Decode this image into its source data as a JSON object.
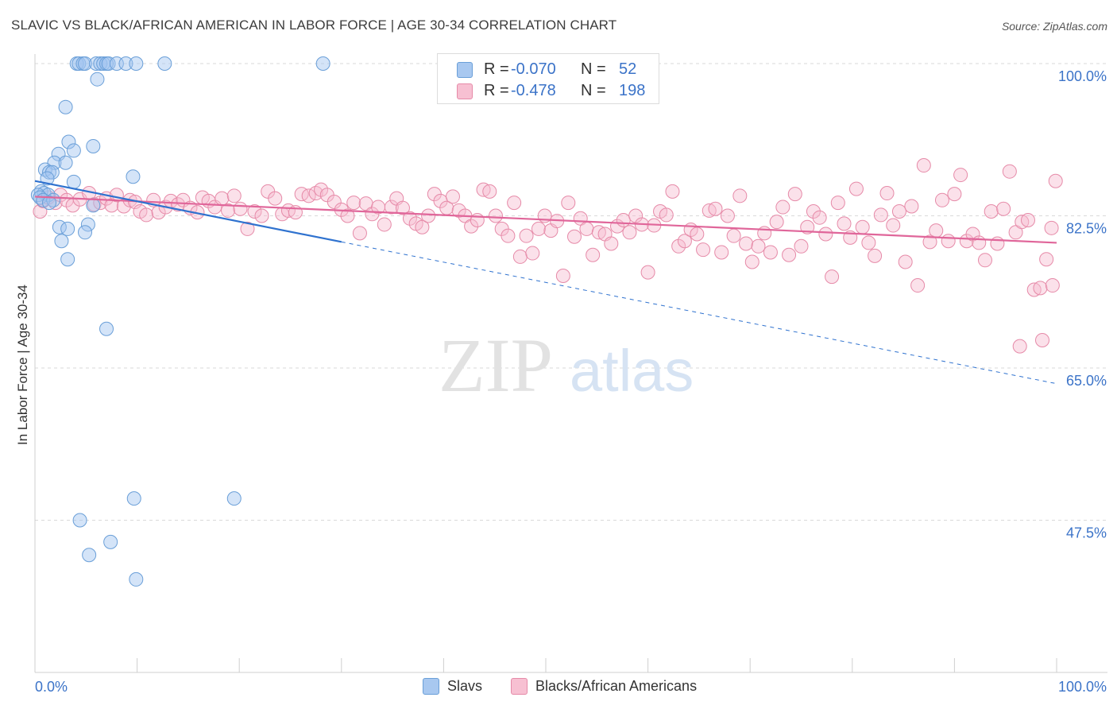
{
  "title": "SLAVIC VS BLACK/AFRICAN AMERICAN IN LABOR FORCE | AGE 30-34 CORRELATION CHART",
  "source": "Source: ZipAtlas.com",
  "watermark": {
    "zip": "ZIP",
    "atlas": "atlas"
  },
  "legend_top": [
    {
      "r_label": "R =",
      "r_value": "-0.070",
      "n_label": "N =",
      "n_value": "52",
      "color": "#a8c8f0",
      "stroke": "#6a9fd8"
    },
    {
      "r_label": "R =",
      "r_value": "-0.478",
      "n_label": "N =",
      "n_value": "198",
      "color": "#f7c0d2",
      "stroke": "#e68aa8"
    }
  ],
  "legend_bottom": [
    {
      "label": "Slavs",
      "color": "#a8c8f0",
      "stroke": "#6a9fd8"
    },
    {
      "label": "Blacks/African Americans",
      "color": "#f7c0d2",
      "stroke": "#e68aa8"
    }
  ],
  "colors": {
    "blue_fill": "rgba(160,196,240,0.45)",
    "blue_stroke": "#6a9fd8",
    "blue_line": "#2f72cf",
    "pink_fill": "rgba(247,188,208,0.45)",
    "pink_stroke": "#e68aa8",
    "pink_line": "#e0669a",
    "tick_label": "#3b73c8",
    "grid": "#d9d9d9"
  },
  "chart_data": {
    "type": "scatter",
    "title": "SLAVIC VS BLACK/AFRICAN AMERICAN IN LABOR FORCE | AGE 30-34 CORRELATION CHART",
    "xlabel": "",
    "ylabel": "In Labor Force | Age 30-34",
    "xlim": [
      0,
      100
    ],
    "ylim": [
      33,
      101.5
    ],
    "x_tick_labels": [
      "0.0%",
      "100.0%"
    ],
    "y_ticks": [
      {
        "value": 100.0,
        "label": "100.0%"
      },
      {
        "value": 82.5,
        "label": "82.5%"
      },
      {
        "value": 65.0,
        "label": "65.0%"
      },
      {
        "value": 47.5,
        "label": "47.5%"
      }
    ],
    "grid": true,
    "legend_position": "top-center",
    "series": [
      {
        "name": "Slavs",
        "R": -0.07,
        "N": 52,
        "points": [
          [
            4.1,
            100.0
          ],
          [
            4.3,
            100.0
          ],
          [
            4.7,
            100.0
          ],
          [
            4.9,
            100.0
          ],
          [
            6.0,
            100.0
          ],
          [
            6.4,
            100.0
          ],
          [
            6.7,
            100.0
          ],
          [
            7.0,
            100.0
          ],
          [
            7.2,
            100.0
          ],
          [
            8.0,
            100.0
          ],
          [
            8.9,
            100.0
          ],
          [
            9.9,
            100.0
          ],
          [
            12.7,
            100.0
          ],
          [
            28.2,
            100.0
          ],
          [
            6.1,
            98.2
          ],
          [
            3.0,
            95.0
          ],
          [
            3.3,
            91.0
          ],
          [
            5.7,
            90.5
          ],
          [
            3.8,
            90.0
          ],
          [
            2.3,
            89.6
          ],
          [
            1.9,
            88.6
          ],
          [
            3.0,
            88.6
          ],
          [
            1.0,
            87.8
          ],
          [
            1.4,
            87.5
          ],
          [
            1.7,
            87.5
          ],
          [
            9.6,
            87.0
          ],
          [
            1.2,
            86.8
          ],
          [
            3.8,
            86.4
          ],
          [
            0.6,
            85.3
          ],
          [
            0.9,
            85.1
          ],
          [
            0.3,
            84.9
          ],
          [
            1.3,
            84.9
          ],
          [
            0.5,
            84.6
          ],
          [
            0.8,
            84.3
          ],
          [
            1.8,
            84.3
          ],
          [
            1.4,
            84.0
          ],
          [
            5.7,
            83.7
          ],
          [
            2.4,
            81.2
          ],
          [
            3.2,
            81.0
          ],
          [
            5.2,
            81.5
          ],
          [
            4.9,
            80.6
          ],
          [
            2.6,
            79.6
          ],
          [
            3.2,
            77.5
          ],
          [
            7.0,
            69.5
          ],
          [
            9.7,
            50.0
          ],
          [
            19.5,
            50.0
          ],
          [
            4.4,
            47.5
          ],
          [
            7.4,
            45.0
          ],
          [
            5.3,
            43.5
          ],
          [
            9.9,
            40.7
          ]
        ],
        "trend": {
          "x": [
            0,
            30
          ],
          "y": [
            86.5,
            79.5
          ],
          "dashed_to": {
            "x": 100,
            "y": 63.2
          }
        }
      },
      {
        "name": "Blacks/African Americans",
        "R": -0.478,
        "N": 198,
        "points": [
          [
            0.5,
            83.0
          ],
          [
            0.8,
            84.2
          ],
          [
            1.3,
            84.6
          ],
          [
            2.0,
            84.0
          ],
          [
            2.5,
            84.9
          ],
          [
            3.1,
            84.3
          ],
          [
            3.7,
            83.7
          ],
          [
            4.4,
            84.4
          ],
          [
            5.3,
            85.1
          ],
          [
            5.8,
            83.8
          ],
          [
            6.4,
            84.0
          ],
          [
            7.0,
            84.5
          ],
          [
            7.5,
            83.7
          ],
          [
            8.0,
            84.9
          ],
          [
            8.7,
            83.6
          ],
          [
            9.3,
            84.3
          ],
          [
            9.8,
            84.1
          ],
          [
            10.3,
            83.0
          ],
          [
            10.9,
            82.6
          ],
          [
            11.6,
            84.3
          ],
          [
            12.1,
            82.9
          ],
          [
            12.8,
            83.5
          ],
          [
            13.3,
            84.2
          ],
          [
            14.0,
            83.8
          ],
          [
            14.5,
            84.3
          ],
          [
            15.2,
            83.4
          ],
          [
            15.9,
            82.9
          ],
          [
            16.4,
            84.6
          ],
          [
            17.0,
            84.2
          ],
          [
            17.6,
            83.5
          ],
          [
            18.3,
            84.5
          ],
          [
            18.9,
            83.1
          ],
          [
            19.5,
            84.8
          ],
          [
            20.1,
            83.3
          ],
          [
            20.8,
            81.0
          ],
          [
            21.5,
            83.0
          ],
          [
            22.2,
            82.5
          ],
          [
            22.8,
            85.3
          ],
          [
            23.5,
            84.5
          ],
          [
            24.2,
            82.7
          ],
          [
            24.8,
            83.1
          ],
          [
            25.5,
            82.9
          ],
          [
            26.1,
            85.0
          ],
          [
            26.8,
            84.8
          ],
          [
            27.5,
            85.1
          ],
          [
            28.0,
            85.5
          ],
          [
            28.6,
            84.9
          ],
          [
            29.3,
            84.1
          ],
          [
            30.0,
            83.2
          ],
          [
            30.6,
            82.5
          ],
          [
            31.2,
            84.0
          ],
          [
            31.8,
            80.5
          ],
          [
            32.4,
            83.9
          ],
          [
            33.0,
            82.7
          ],
          [
            33.6,
            83.5
          ],
          [
            34.2,
            81.5
          ],
          [
            34.9,
            83.5
          ],
          [
            35.4,
            84.5
          ],
          [
            36.0,
            83.4
          ],
          [
            36.7,
            82.2
          ],
          [
            37.3,
            81.6
          ],
          [
            37.9,
            81.2
          ],
          [
            38.5,
            82.5
          ],
          [
            39.1,
            85.0
          ],
          [
            39.7,
            84.2
          ],
          [
            40.3,
            83.4
          ],
          [
            40.9,
            84.7
          ],
          [
            41.5,
            83.1
          ],
          [
            42.1,
            82.5
          ],
          [
            42.7,
            81.3
          ],
          [
            43.3,
            82.0
          ],
          [
            43.9,
            85.5
          ],
          [
            44.5,
            85.3
          ],
          [
            45.1,
            82.5
          ],
          [
            45.7,
            81.0
          ],
          [
            46.3,
            80.2
          ],
          [
            46.9,
            84.0
          ],
          [
            47.5,
            77.8
          ],
          [
            48.1,
            80.2
          ],
          [
            48.7,
            78.2
          ],
          [
            49.3,
            81.0
          ],
          [
            49.9,
            82.5
          ],
          [
            50.5,
            80.8
          ],
          [
            51.1,
            81.9
          ],
          [
            51.7,
            75.6
          ],
          [
            52.2,
            84.0
          ],
          [
            52.8,
            80.1
          ],
          [
            53.4,
            82.2
          ],
          [
            54.0,
            81.0
          ],
          [
            54.6,
            78.0
          ],
          [
            55.2,
            80.6
          ],
          [
            55.8,
            80.4
          ],
          [
            56.4,
            79.3
          ],
          [
            57.0,
            81.3
          ],
          [
            57.6,
            82.0
          ],
          [
            58.2,
            80.6
          ],
          [
            58.8,
            82.5
          ],
          [
            59.4,
            81.5
          ],
          [
            60.0,
            76.0
          ],
          [
            60.6,
            81.4
          ],
          [
            61.2,
            83.0
          ],
          [
            61.8,
            82.6
          ],
          [
            62.4,
            85.3
          ],
          [
            63.0,
            79.0
          ],
          [
            63.6,
            79.6
          ],
          [
            64.2,
            80.9
          ],
          [
            64.8,
            80.4
          ],
          [
            65.4,
            78.6
          ],
          [
            66.0,
            83.1
          ],
          [
            66.6,
            83.3
          ],
          [
            67.2,
            78.3
          ],
          [
            67.8,
            82.5
          ],
          [
            68.4,
            80.2
          ],
          [
            69.0,
            84.8
          ],
          [
            69.6,
            79.3
          ],
          [
            70.2,
            77.2
          ],
          [
            70.8,
            79.0
          ],
          [
            71.4,
            80.5
          ],
          [
            72.0,
            78.3
          ],
          [
            72.6,
            81.8
          ],
          [
            73.2,
            83.5
          ],
          [
            73.8,
            78.0
          ],
          [
            74.4,
            85.0
          ],
          [
            75.0,
            79.0
          ],
          [
            75.6,
            81.2
          ],
          [
            76.2,
            83.0
          ],
          [
            76.8,
            82.3
          ],
          [
            77.4,
            80.4
          ],
          [
            78.0,
            75.5
          ],
          [
            78.6,
            84.0
          ],
          [
            79.2,
            81.6
          ],
          [
            79.8,
            80.0
          ],
          [
            80.4,
            85.6
          ],
          [
            81.0,
            81.2
          ],
          [
            81.6,
            79.4
          ],
          [
            82.2,
            77.9
          ],
          [
            82.8,
            82.6
          ],
          [
            83.4,
            85.1
          ],
          [
            84.0,
            81.4
          ],
          [
            84.6,
            83.0
          ],
          [
            85.2,
            77.2
          ],
          [
            85.8,
            83.6
          ],
          [
            86.4,
            74.5
          ],
          [
            87.0,
            88.3
          ],
          [
            87.6,
            79.5
          ],
          [
            88.2,
            80.8
          ],
          [
            88.8,
            84.3
          ],
          [
            89.4,
            79.6
          ],
          [
            90.0,
            85.0
          ],
          [
            90.6,
            87.2
          ],
          [
            91.2,
            79.6
          ],
          [
            91.8,
            80.4
          ],
          [
            92.4,
            79.4
          ],
          [
            93.0,
            77.4
          ],
          [
            93.6,
            83.0
          ],
          [
            94.2,
            79.3
          ],
          [
            94.8,
            83.3
          ],
          [
            95.4,
            87.6
          ],
          [
            96.0,
            80.6
          ],
          [
            96.6,
            81.8
          ],
          [
            97.2,
            82.0
          ],
          [
            97.8,
            74.0
          ],
          [
            98.4,
            74.2
          ],
          [
            99.0,
            77.5
          ],
          [
            99.5,
            81.1
          ],
          [
            99.9,
            86.5
          ],
          [
            96.4,
            67.5
          ],
          [
            98.6,
            68.2
          ],
          [
            99.6,
            74.5
          ]
        ],
        "trend": {
          "x": [
            0,
            100
          ],
          "y": [
            84.7,
            79.4
          ]
        }
      }
    ]
  }
}
